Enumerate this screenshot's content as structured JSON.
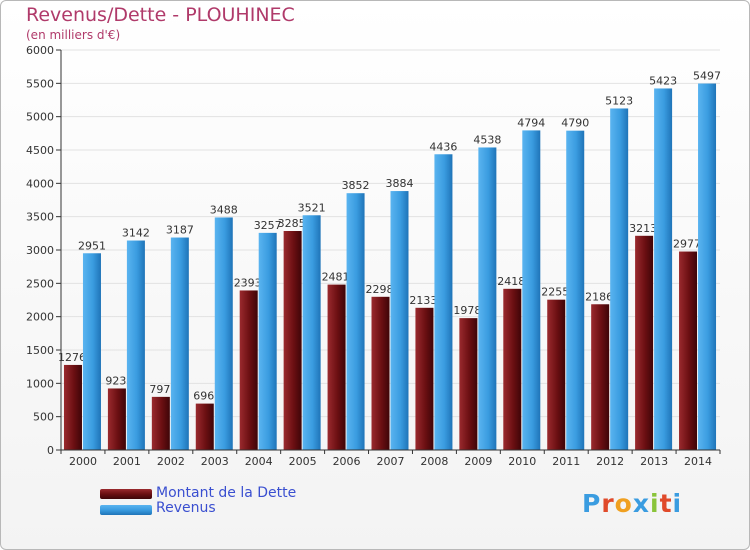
{
  "title": "Revenus/Dette - PLOUHINEC",
  "subtitle": "(en milliers d'€)",
  "logo": "Proxiti",
  "colors": {
    "debt": "#6b0f12",
    "revenue": "#3a9ce0",
    "axis": "#333333",
    "grid": "#e2e2e2"
  },
  "chart_data": {
    "type": "bar",
    "categories": [
      "2000",
      "2001",
      "2002",
      "2003",
      "2004",
      "2005",
      "2006",
      "2007",
      "2008",
      "2009",
      "2010",
      "2011",
      "2012",
      "2013",
      "2014"
    ],
    "series": [
      {
        "name": "Montant de la Dette",
        "values": [
          1276,
          923,
          797,
          696,
          2393,
          3285,
          2481,
          2298,
          2133,
          1978,
          2418,
          2255,
          2186,
          3213,
          2977
        ]
      },
      {
        "name": "Revenus",
        "values": [
          2951,
          3142,
          3187,
          3488,
          3257,
          3521,
          3852,
          3884,
          4436,
          4538,
          4794,
          4790,
          5123,
          5423,
          5497
        ]
      }
    ],
    "data_labels": [
      [
        "1276",
        "923",
        "797",
        "696",
        "2393",
        "3285",
        "2481",
        "2298",
        "2133",
        "1978",
        "2418",
        "2255",
        "2186",
        "3213",
        "2977"
      ],
      [
        "2951",
        "3142",
        "3187",
        "3488",
        "3257",
        "3521",
        "3852",
        "3884",
        "4436",
        "4538",
        "4794",
        "4790",
        "5123",
        "5423",
        "5497"
      ]
    ],
    "yticks": [
      0,
      500,
      1000,
      1500,
      2000,
      2500,
      3000,
      3500,
      4000,
      4500,
      5000,
      5500,
      6000
    ],
    "ylim": [
      0,
      6000
    ],
    "legend_position": "bottom-left",
    "grid": true
  }
}
